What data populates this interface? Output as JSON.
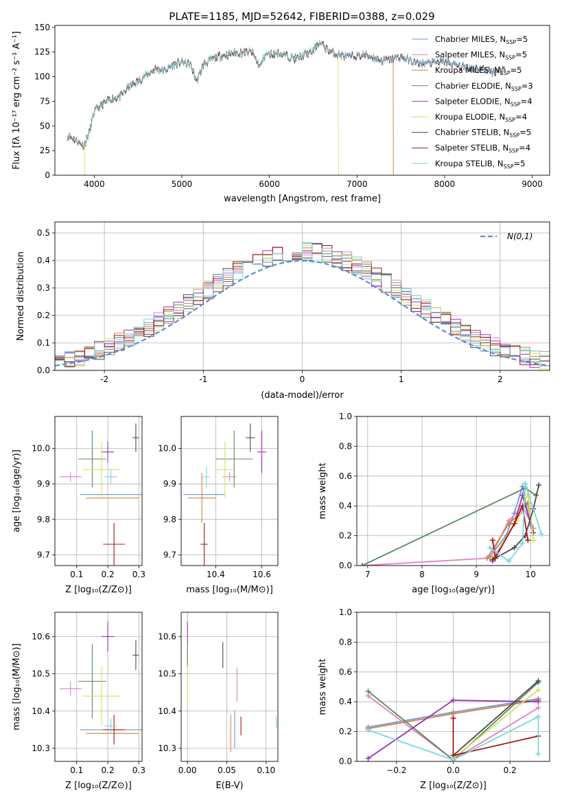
{
  "figure_title": "PLATE=1185, MJD=52642, FIBERID=0388, z=0.029",
  "series_styles": [
    {
      "name": "Chabrier MILES",
      "color": "#6a97d6"
    },
    {
      "name": "Salpeter MILES",
      "color": "#e37fbf"
    },
    {
      "name": "Kroupa MILES",
      "color": "#d0813a"
    },
    {
      "name": "Chabrier ELODIE",
      "color": "#5a8a5e"
    },
    {
      "name": "Salpeter ELODIE",
      "color": "#9c2fb8"
    },
    {
      "name": "Kroupa ELODIE",
      "color": "#cfe35a"
    },
    {
      "name": "Chabrier STELIB",
      "color": "#4a4a4a"
    },
    {
      "name": "Salpeter STELIB",
      "color": "#a8151c"
    },
    {
      "name": "Kroupa STELIB",
      "color": "#79d7e0"
    }
  ],
  "chart_data": [
    {
      "id": "spectrum",
      "type": "line",
      "xlabel": "wavelength [Angstrom, rest frame]",
      "ylabel": "Flux [fλ 10⁻¹⁷ erg cm⁻² s⁻¹ A⁻¹]",
      "xlim": [
        3550,
        9200
      ],
      "ylim": [
        0,
        152
      ],
      "xticks": [
        4000,
        5000,
        6000,
        7000,
        8000,
        9000
      ],
      "yticks": [
        0,
        25,
        50,
        75,
        100,
        125,
        150
      ],
      "grid": false,
      "legend_position": "top-right",
      "legend": [
        {
          "text": "Chabrier MILES, N",
          "sub": "SSP",
          "tail": "=5"
        },
        {
          "text": "Salpeter MILES, N",
          "sub": "SSP",
          "tail": "=5"
        },
        {
          "text": "Kroupa MILES, N",
          "sub": "SSP",
          "tail": "=5"
        },
        {
          "text": "Chabrier ELODIE, N",
          "sub": "SSP",
          "tail": "=3"
        },
        {
          "text": "Salpeter ELODIE, N",
          "sub": "SSP",
          "tail": "=4"
        },
        {
          "text": "Kroupa ELODIE, N",
          "sub": "SSP",
          "tail": "=4"
        },
        {
          "text": "Chabrier STELIB, N",
          "sub": "SSP",
          "tail": "=5"
        },
        {
          "text": "Salpeter STELIB, N",
          "sub": "SSP",
          "tail": "=4"
        },
        {
          "text": "Kroupa STELIB, N",
          "sub": "SSP",
          "tail": "=5"
        }
      ],
      "continuum": [
        [
          3700,
          40
        ],
        [
          3800,
          35
        ],
        [
          3880,
          30
        ],
        [
          3950,
          45
        ],
        [
          4000,
          65
        ],
        [
          4100,
          72
        ],
        [
          4200,
          78
        ],
        [
          4300,
          80
        ],
        [
          4400,
          90
        ],
        [
          4500,
          95
        ],
        [
          4600,
          102
        ],
        [
          4700,
          108
        ],
        [
          4800,
          106
        ],
        [
          4900,
          112
        ],
        [
          5000,
          115
        ],
        [
          5100,
          112
        ],
        [
          5170,
          95
        ],
        [
          5250,
          113
        ],
        [
          5400,
          120
        ],
        [
          5600,
          124
        ],
        [
          5800,
          125
        ],
        [
          5890,
          110
        ],
        [
          5950,
          122
        ],
        [
          6100,
          124
        ],
        [
          6300,
          118
        ],
        [
          6500,
          126
        ],
        [
          6563,
          135
        ],
        [
          6700,
          125
        ],
        [
          6900,
          120
        ],
        [
          7100,
          122
        ],
        [
          7300,
          116
        ],
        [
          7500,
          120
        ],
        [
          7700,
          113
        ],
        [
          8000,
          115
        ],
        [
          8200,
          110
        ],
        [
          8400,
          108
        ],
        [
          8550,
          105
        ],
        [
          8700,
          108
        ]
      ],
      "model_end_wavelengths": [
        8690,
        7415,
        7415,
        8690,
        8690,
        6790,
        8690,
        8690,
        8690
      ],
      "data_end_wavelength": 8700
    },
    {
      "id": "residuals",
      "type": "histogram",
      "xlabel": "(data-model)/error",
      "ylabel": "Normed distribution",
      "xlim": [
        -2.5,
        2.5
      ],
      "ylim": [
        0,
        0.54
      ],
      "xticks": [
        -2,
        -1,
        0,
        1,
        2
      ],
      "yticks": [
        0.0,
        0.1,
        0.2,
        0.3,
        0.4,
        0.5
      ],
      "grid": true,
      "bin_width": 0.1,
      "legend_position": "top-right",
      "reference_curve": {
        "name": "N(0,1)",
        "color": "#5b8bd6"
      }
    },
    {
      "id": "age-vs-Z",
      "type": "errorbar",
      "xlabel": "Z [log₁₀(Z/Z⊙)]",
      "ylabel": "age  [log₁₀(age/yr)]",
      "xlim": [
        0.03,
        0.31
      ],
      "ylim": [
        9.67,
        10.09
      ],
      "xticks": [
        0.1,
        0.2,
        0.3
      ],
      "yticks": [
        9.7,
        9.8,
        9.9,
        10.0
      ],
      "grid": true,
      "points": [
        {
          "x": 0.21,
          "y": 9.87,
          "xerr": 0.1,
          "yerr": 0.0
        },
        {
          "x": 0.08,
          "y": 9.92,
          "xerr": 0.035,
          "yerr": 0.013
        },
        {
          "x": 0.215,
          "y": 9.86,
          "xerr": 0.085,
          "yerr": 0.0
        },
        {
          "x": 0.15,
          "y": 9.97,
          "xerr": 0.045,
          "yerr": 0.08
        },
        {
          "x": 0.2,
          "y": 9.99,
          "xerr": 0.02,
          "yerr": 0.03
        },
        {
          "x": 0.18,
          "y": 9.94,
          "xerr": 0.06,
          "yerr": 0.08
        },
        {
          "x": 0.29,
          "y": 10.03,
          "xerr": 0.01,
          "yerr": 0.04
        },
        {
          "x": 0.22,
          "y": 9.73,
          "xerr": 0.035,
          "yerr": 0.06
        },
        {
          "x": 0.21,
          "y": 9.92,
          "xerr": 0.02,
          "yerr": 0.02
        }
      ]
    },
    {
      "id": "age-vs-mass",
      "type": "errorbar",
      "xlabel": "mass [log₁₀(M/M⊙)]",
      "ylabel": "",
      "xlim": [
        10.25,
        10.67
      ],
      "ylim": [
        9.67,
        10.09
      ],
      "xticks": [
        10.4,
        10.6
      ],
      "yticks": [
        9.7,
        9.8,
        9.9,
        10.0
      ],
      "grid": true,
      "points": [
        {
          "x": 10.35,
          "y": 9.87,
          "xerr": 0.09,
          "yerr": 0.0
        },
        {
          "x": 10.46,
          "y": 9.92,
          "xerr": 0.03,
          "yerr": 0.013
        },
        {
          "x": 10.34,
          "y": 9.86,
          "xerr": 0.06,
          "yerr": 0.07
        },
        {
          "x": 10.48,
          "y": 9.97,
          "xerr": 0.08,
          "yerr": 0.08
        },
        {
          "x": 10.6,
          "y": 9.99,
          "xerr": 0.02,
          "yerr": 0.06
        },
        {
          "x": 10.44,
          "y": 9.94,
          "xerr": 0.04,
          "yerr": 0.08
        },
        {
          "x": 10.55,
          "y": 10.03,
          "xerr": 0.02,
          "yerr": 0.04
        },
        {
          "x": 10.35,
          "y": 9.73,
          "xerr": 0.015,
          "yerr": 0.06
        },
        {
          "x": 10.36,
          "y": 9.92,
          "xerr": 0.015,
          "yerr": 0.03
        }
      ]
    },
    {
      "id": "mass-weight-vs-age",
      "type": "line",
      "xlabel": "age  [log₁₀(age/yr)]",
      "ylabel": "mass weight",
      "xlim": [
        6.8,
        10.35
      ],
      "ylim": [
        0,
        1.0
      ],
      "xticks": [
        7,
        8,
        9,
        10
      ],
      "yticks": [
        0.0,
        0.2,
        0.4,
        0.6,
        0.8,
        1.0
      ],
      "grid": true,
      "series": [
        {
          "values": [
            [
              9.25,
              0.06
            ],
            [
              9.55,
              0.2
            ],
            [
              9.7,
              0.35
            ],
            [
              9.85,
              0.53
            ],
            [
              10.0,
              0.27
            ]
          ]
        },
        {
          "values": [
            [
              6.9,
              0.0
            ],
            [
              9.25,
              0.05
            ],
            [
              9.6,
              0.3
            ],
            [
              9.85,
              0.4
            ],
            [
              10.05,
              0.25
            ]
          ]
        },
        {
          "values": [
            [
              9.2,
              0.05
            ],
            [
              9.6,
              0.28
            ],
            [
              9.8,
              0.35
            ],
            [
              9.95,
              0.42
            ],
            [
              10.05,
              0.22
            ]
          ]
        },
        {
          "values": [
            [
              6.9,
              0.0
            ],
            [
              9.9,
              0.52
            ],
            [
              10.1,
              0.47
            ]
          ]
        },
        {
          "values": [
            [
              9.3,
              0.03
            ],
            [
              9.7,
              0.28
            ],
            [
              9.85,
              0.47
            ],
            [
              10.05,
              0.22
            ]
          ]
        },
        {
          "values": [
            [
              9.3,
              0.05
            ],
            [
              9.75,
              0.3
            ],
            [
              9.95,
              0.48
            ],
            [
              10.05,
              0.17
            ]
          ]
        },
        {
          "values": [
            [
              9.3,
              0.04
            ],
            [
              9.7,
              0.12
            ],
            [
              9.9,
              0.2
            ],
            [
              10.05,
              0.38
            ],
            [
              10.15,
              0.54
            ]
          ]
        },
        {
          "values": [
            [
              9.3,
              0.17
            ],
            [
              9.35,
              0.05
            ],
            [
              9.7,
              0.28
            ],
            [
              9.85,
              0.4
            ],
            [
              9.95,
              0.17
            ]
          ]
        },
        {
          "values": [
            [
              9.25,
              0.12
            ],
            [
              9.6,
              0.03
            ],
            [
              9.85,
              0.15
            ],
            [
              9.9,
              0.55
            ],
            [
              10.2,
              0.21
            ]
          ]
        }
      ]
    },
    {
      "id": "mass-vs-Z",
      "type": "errorbar",
      "xlabel": "Z [log₁₀(Z/Z⊙)]",
      "ylabel": "mass [log₁₀(M/M⊙)]",
      "xlim": [
        0.03,
        0.31
      ],
      "ylim": [
        10.265,
        10.665
      ],
      "xticks": [
        0.1,
        0.2,
        0.3
      ],
      "yticks": [
        10.3,
        10.4,
        10.5,
        10.6
      ],
      "grid": true,
      "points": [
        {
          "x": 0.21,
          "y": 10.35,
          "xerr": 0.1,
          "yerr": 0.0
        },
        {
          "x": 0.08,
          "y": 10.46,
          "xerr": 0.035,
          "yerr": 0.02
        },
        {
          "x": 0.215,
          "y": 10.34,
          "xerr": 0.085,
          "yerr": 0.0
        },
        {
          "x": 0.15,
          "y": 10.48,
          "xerr": 0.045,
          "yerr": 0.1
        },
        {
          "x": 0.2,
          "y": 10.6,
          "xerr": 0.02,
          "yerr": 0.04
        },
        {
          "x": 0.18,
          "y": 10.44,
          "xerr": 0.06,
          "yerr": 0.08
        },
        {
          "x": 0.29,
          "y": 10.55,
          "xerr": 0.01,
          "yerr": 0.04
        },
        {
          "x": 0.22,
          "y": 10.35,
          "xerr": 0.035,
          "yerr": 0.04
        },
        {
          "x": 0.21,
          "y": 10.36,
          "xerr": 0.02,
          "yerr": 0.02
        }
      ]
    },
    {
      "id": "mass-vs-EBV",
      "type": "errorbar",
      "xlabel": "E(B-V)",
      "ylabel": "",
      "xlim": [
        -0.008,
        0.115
      ],
      "ylim": [
        10.265,
        10.665
      ],
      "xticks": [
        0.0,
        0.05,
        0.1
      ],
      "xticklabels": [
        "0.00",
        "0.05",
        "0.10"
      ],
      "yticks": [
        10.3,
        10.4,
        10.5,
        10.6
      ],
      "grid": true,
      "points": [
        {
          "x": 0.06,
          "y": 10.35,
          "xerr": 0.0,
          "yerr": 0.05
        },
        {
          "x": 0.063,
          "y": 10.47,
          "xerr": 0.0,
          "yerr": 0.045
        },
        {
          "x": 0.055,
          "y": 10.34,
          "xerr": 0.0,
          "yerr": 0.05
        },
        {
          "x": 0.0,
          "y": 10.55,
          "xerr": 0.0,
          "yerr": 0.03
        },
        {
          "x": 0.0,
          "y": 10.61,
          "xerr": 0.0,
          "yerr": 0.03
        },
        {
          "x": 0.0,
          "y": 10.47,
          "xerr": 0.0,
          "yerr": 0.05
        },
        {
          "x": 0.045,
          "y": 10.55,
          "xerr": 0.0,
          "yerr": 0.035
        },
        {
          "x": 0.068,
          "y": 10.36,
          "xerr": 0.0,
          "yerr": 0.025
        },
        {
          "x": 0.113,
          "y": 10.37,
          "xerr": 0.0,
          "yerr": 0.015
        }
      ]
    },
    {
      "id": "mass-weight-vs-Z",
      "type": "line",
      "xlabel": "Z [log₁₀(Z/Z⊙)]",
      "ylabel": "mass weight",
      "xlim": [
        -0.34,
        0.34
      ],
      "ylim": [
        0,
        1.0
      ],
      "xticks": [
        -0.2,
        0.0,
        0.2
      ],
      "xticklabels": [
        "−0.2",
        "0.0",
        "0.2"
      ],
      "yticks": [
        0.0,
        0.2,
        0.4,
        0.6,
        0.8,
        1.0
      ],
      "grid": true,
      "series": [
        {
          "values": [
            [
              -0.3,
              0.23
            ],
            [
              0.0,
              0.33
            ],
            [
              0.3,
              0.42
            ]
          ]
        },
        {
          "values": [
            [
              -0.3,
              0.44
            ],
            [
              0.0,
              0.01
            ],
            [
              0.3,
              0.36
            ]
          ]
        },
        {
          "values": [
            [
              -0.3,
              0.22
            ],
            [
              0.0,
              0.32
            ],
            [
              0.3,
              0.41
            ]
          ]
        },
        {
          "values": [
            [
              -0.3,
              0.47
            ],
            [
              0.0,
              0.01
            ],
            [
              0.3,
              0.53
            ]
          ]
        },
        {
          "values": [
            [
              -0.3,
              0.02
            ],
            [
              0.0,
              0.41
            ],
            [
              0.3,
              0.4
            ]
          ]
        },
        {
          "values": [
            [
              0.0,
              0.02
            ],
            [
              0.3,
              0.48
            ]
          ]
        },
        {
          "values": [
            [
              0.0,
              0.04
            ],
            [
              0.3,
              0.54
            ]
          ]
        },
        {
          "values": [
            [
              0.0,
              0.29
            ],
            [
              0.0,
              0.04
            ],
            [
              0.3,
              0.17
            ]
          ]
        },
        {
          "values": [
            [
              -0.3,
              0.21
            ],
            [
              0.0,
              0.01
            ],
            [
              0.3,
              0.3
            ],
            [
              0.3,
              0.05
            ]
          ]
        }
      ]
    }
  ]
}
